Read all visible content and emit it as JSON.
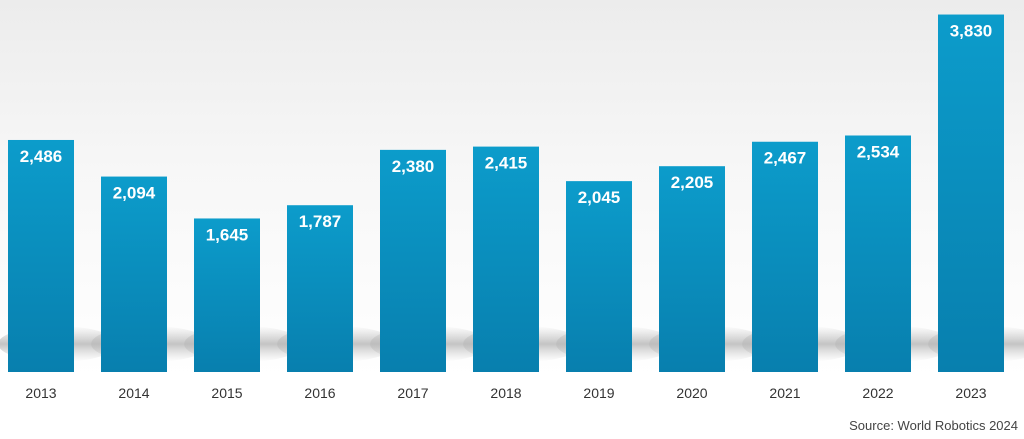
{
  "chart_data": {
    "type": "bar",
    "categories": [
      "2013",
      "2014",
      "2015",
      "2016",
      "2017",
      "2018",
      "2019",
      "2020",
      "2021",
      "2022",
      "2023"
    ],
    "values": [
      2486,
      2094,
      1645,
      1787,
      2380,
      2415,
      2045,
      2205,
      2467,
      2534,
      3830
    ],
    "value_labels": [
      "2,486",
      "2,094",
      "1,645",
      "1,787",
      "2,380",
      "2,415",
      "2,045",
      "2,205",
      "2,467",
      "2,534",
      "3,830"
    ],
    "title": "",
    "xlabel": "",
    "ylabel": "",
    "ylim": [
      0,
      3900
    ],
    "grid": false,
    "legend": "none",
    "bar_color": "#0c9ccb",
    "bar_color_dark": "#087fae",
    "label_color": "#ffffff",
    "tick_color": "#333333",
    "background_top": "#ececec",
    "background_bottom": "#ffffff"
  },
  "source_note": "Source: World Robotics 2024"
}
